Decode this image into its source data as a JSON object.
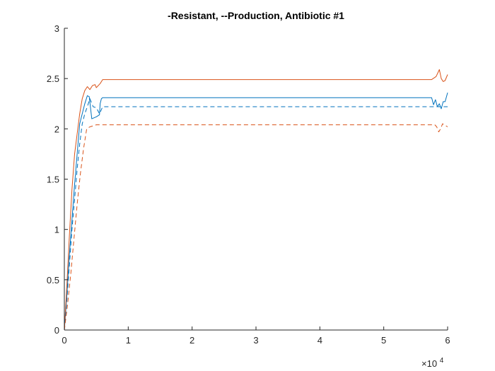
{
  "chart_data": {
    "type": "line",
    "title": "-Resistant, --Production, Antibiotic #1",
    "xlabel": "",
    "ylabel": "",
    "xlim": [
      0,
      60000
    ],
    "ylim": [
      0,
      3
    ],
    "x_ticks": [
      0,
      10000,
      20000,
      30000,
      40000,
      50000,
      60000
    ],
    "x_tick_labels": [
      "0",
      "1",
      "2",
      "3",
      "4",
      "5",
      "6"
    ],
    "x_exponent_base": "×10",
    "x_exponent_power": "4",
    "y_ticks": [
      0,
      0.5,
      1,
      1.5,
      2,
      2.5,
      3
    ],
    "y_tick_labels": [
      "0",
      "0.5",
      "1",
      "1.5",
      "2",
      "2.5",
      "3"
    ],
    "grid": false,
    "series": [
      {
        "color": "#0072BD",
        "style": "solid",
        "x": [
          0,
          400,
          800,
          1200,
          1600,
          2000,
          2400,
          2800,
          3200,
          3600,
          3900,
          4300,
          5000,
          5500,
          5600,
          5800,
          6000,
          57500,
          57800,
          58100,
          58400,
          58700,
          59000,
          59300,
          59600,
          60000
        ],
        "y": [
          0,
          0.35,
          0.75,
          1.1,
          1.45,
          1.75,
          2.05,
          2.15,
          2.25,
          2.33,
          2.32,
          2.1,
          2.12,
          2.14,
          2.25,
          2.3,
          2.31,
          2.31,
          2.24,
          2.29,
          2.22,
          2.25,
          2.2,
          2.27,
          2.27,
          2.36
        ]
      },
      {
        "color": "#D95319",
        "style": "solid",
        "x": [
          0,
          400,
          800,
          1200,
          1600,
          2000,
          2400,
          2800,
          3200,
          3600,
          4000,
          4400,
          4800,
          5000,
          5600,
          6000,
          57500,
          58200,
          58500,
          58700,
          59000,
          59300,
          59600,
          60000
        ],
        "y": [
          0,
          0.45,
          0.95,
          1.4,
          1.75,
          1.95,
          2.15,
          2.3,
          2.38,
          2.42,
          2.39,
          2.43,
          2.44,
          2.41,
          2.45,
          2.49,
          2.49,
          2.52,
          2.56,
          2.59,
          2.5,
          2.47,
          2.48,
          2.54
        ]
      },
      {
        "color": "#0072BD",
        "style": "dashed",
        "x": [
          0,
          400,
          800,
          1200,
          1600,
          2000,
          2400,
          2800,
          3200,
          3600,
          4000,
          4500,
          5000,
          5500,
          6000,
          60000
        ],
        "y": [
          0,
          0.3,
          0.65,
          1.0,
          1.3,
          1.6,
          1.85,
          2.05,
          2.15,
          2.22,
          2.3,
          2.22,
          2.21,
          2.15,
          2.22,
          2.22
        ]
      },
      {
        "color": "#D95319",
        "style": "dashed",
        "x": [
          0,
          500,
          1000,
          1500,
          2000,
          2500,
          3000,
          3500,
          4000,
          4500,
          5000,
          6000,
          58000,
          58300,
          58600,
          58900,
          59200,
          60000
        ],
        "y": [
          0,
          0.25,
          0.55,
          0.9,
          1.25,
          1.55,
          1.8,
          2.0,
          2.02,
          2.03,
          2.04,
          2.04,
          2.04,
          2.02,
          1.97,
          2.0,
          2.05,
          2.02
        ]
      }
    ]
  }
}
